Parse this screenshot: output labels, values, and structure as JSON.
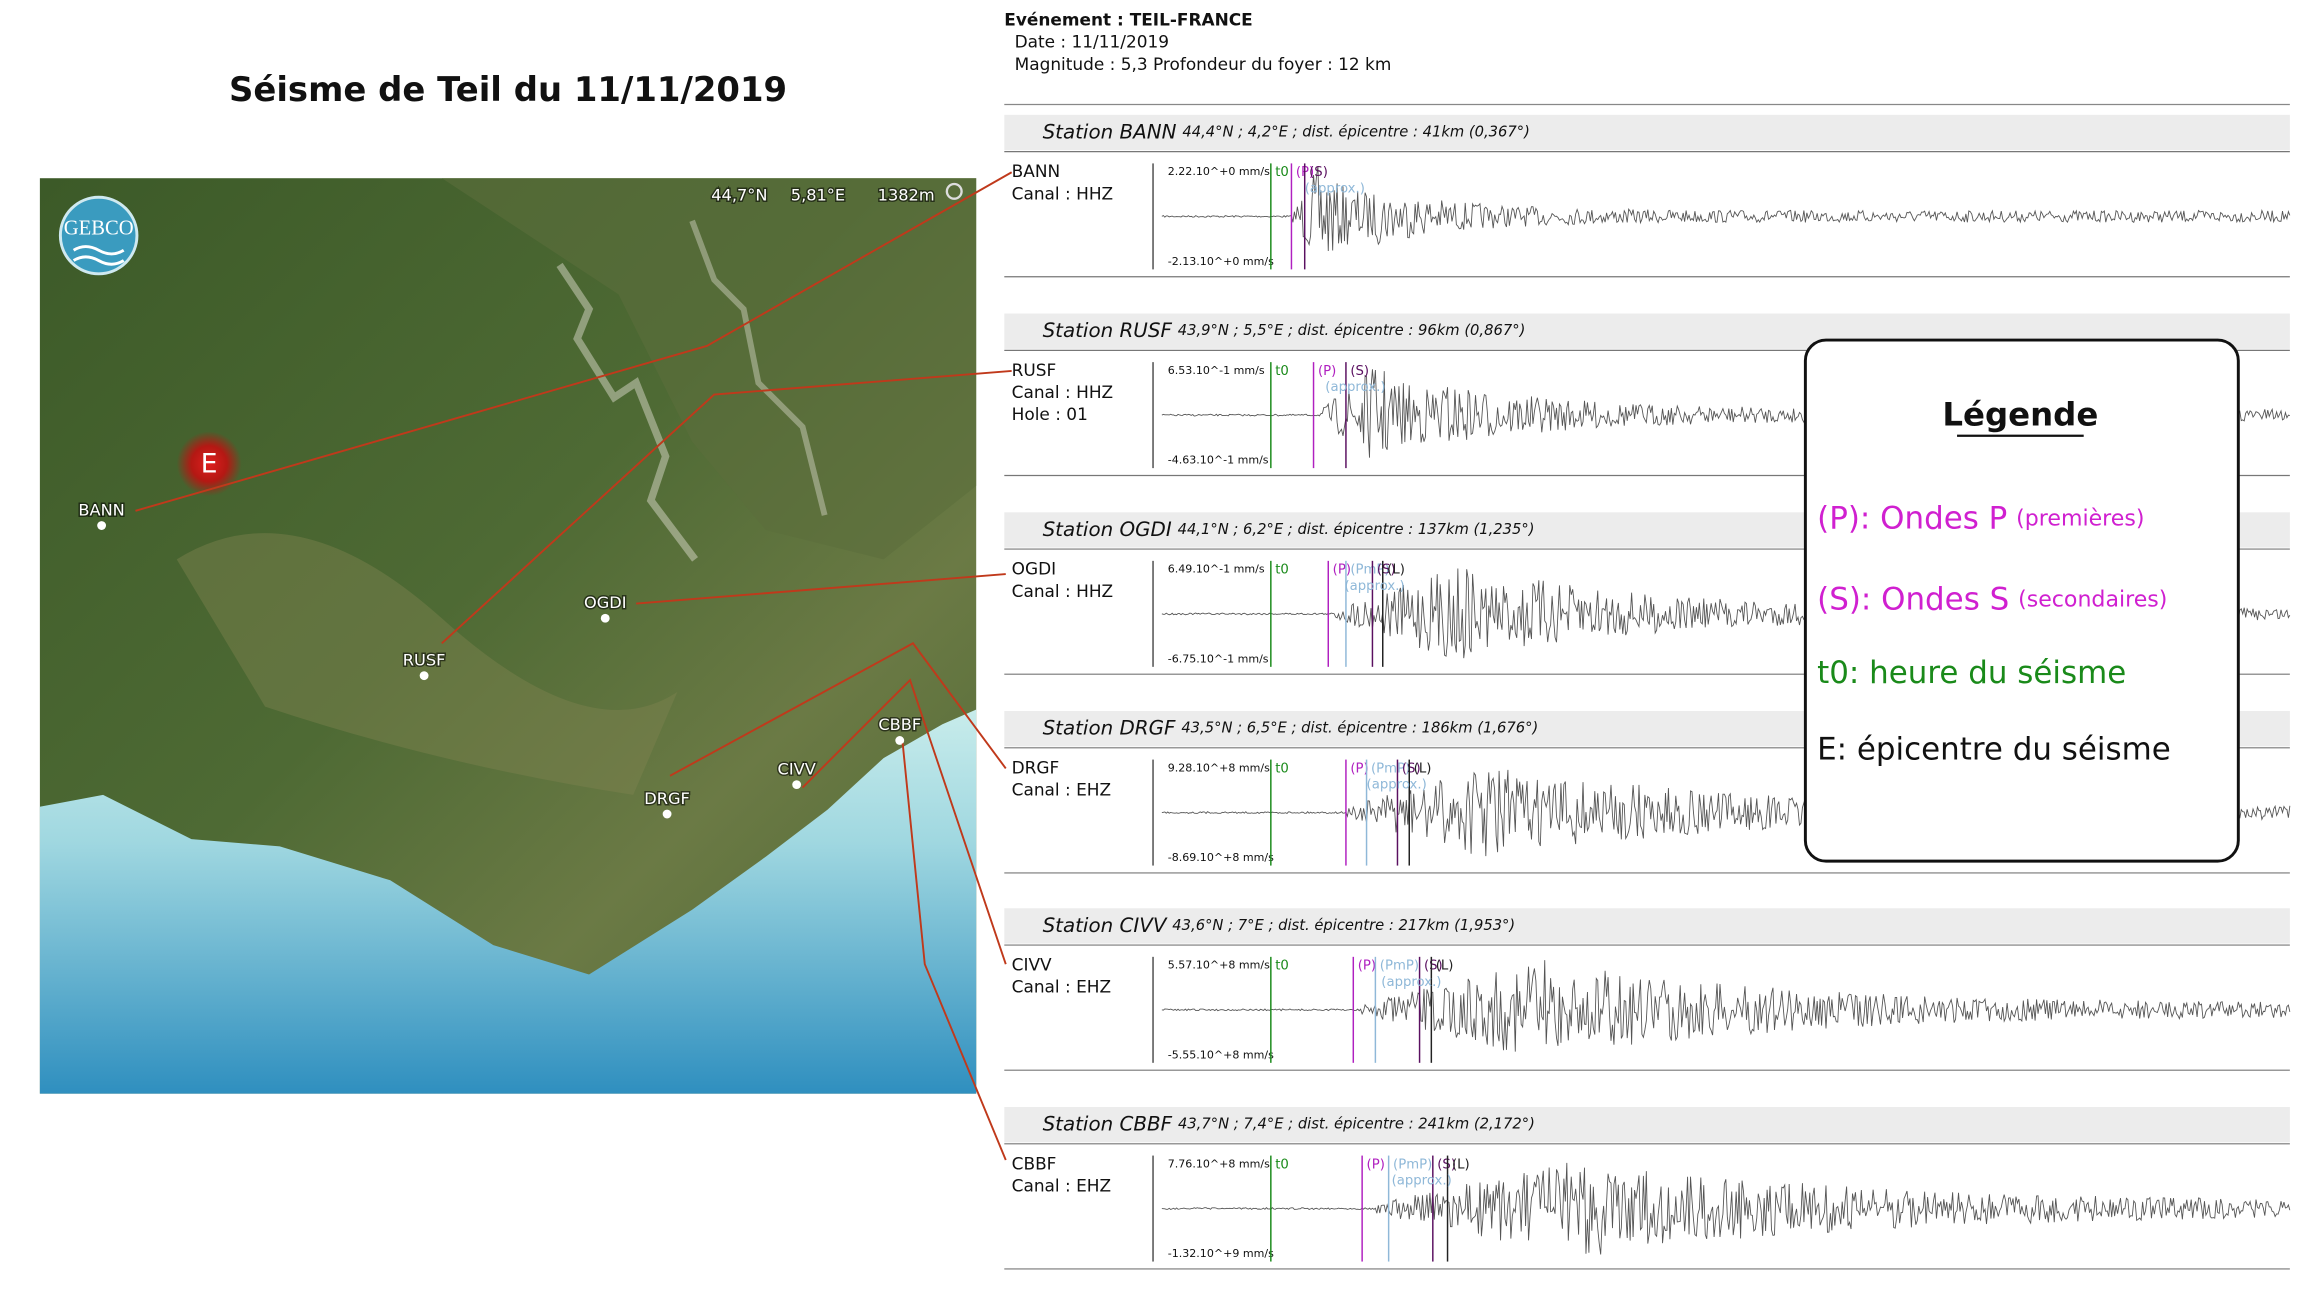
{
  "title": "Séisme de Teil du 11/11/2019",
  "map": {
    "logo": "GEBCO",
    "coords": [
      "44,7°N",
      "5,81°E",
      "1382m"
    ],
    "epicenter": "E",
    "stations": [
      "BANN",
      "OGDI",
      "RUSF",
      "DRGF",
      "CIVV",
      "CBBF"
    ]
  },
  "event": {
    "name": "Evénement : TEIL-FRANCE",
    "date": "Date : 11/11/2019",
    "details": "Magnitude : 5,3  Profondeur du foyer : 12 km"
  },
  "stations": [
    {
      "heading": "Station BANN",
      "details": "44,4°N ; 4,2°E ; dist. épicentre : 41km (0,367°)",
      "info": [
        "BANN",
        "Canal : HHZ"
      ],
      "max": "2.22.10^+0 mm/s",
      "min": "-2.13.10^+0 mm/s",
      "phases": [
        {
          "label": "t0",
          "color": "#1a8a1a"
        },
        {
          "label": "(P)",
          "color": "#b020c0"
        },
        {
          "label": "(S)",
          "color": "#5a1060"
        },
        {
          "label": "(approx.)",
          "color": "#8fb8d8"
        }
      ]
    },
    {
      "heading": "Station RUSF",
      "details": "43,9°N ; 5,5°E ; dist. épicentre : 96km (0,867°)",
      "info": [
        "RUSF",
        "Canal : HHZ",
        "Hole : 01"
      ],
      "max": "6.53.10^-1 mm/s",
      "min": "-4.63.10^-1 mm/s",
      "phases": [
        {
          "label": "t0",
          "color": "#1a8a1a"
        },
        {
          "label": "(P)",
          "color": "#b020c0"
        },
        {
          "label": "(S)",
          "color": "#5a1060"
        },
        {
          "label": "(approx.)",
          "color": "#8fb8d8"
        }
      ]
    },
    {
      "heading": "Station OGDI",
      "details": "44,1°N ; 6,2°E ; dist. épicentre : 137km (1,235°)",
      "info": [
        "OGDI",
        "Canal : HHZ"
      ],
      "max": "6.49.10^-1 mm/s",
      "min": "-6.75.10^-1 mm/s",
      "phases": [
        {
          "label": "t0",
          "color": "#1a8a1a"
        },
        {
          "label": "(P)",
          "color": "#b020c0"
        },
        {
          "label": "(PmP)",
          "color": "#8fb8d8"
        },
        {
          "label": "(S)",
          "color": "#5a1060"
        },
        {
          "label": "(L)",
          "color": "#222222"
        },
        {
          "label": "(approx.)",
          "color": "#8fb8d8"
        }
      ]
    },
    {
      "heading": "Station DRGF",
      "details": "43,5°N ; 6,5°E ; dist. épicentre : 186km (1,676°)",
      "info": [
        "DRGF",
        "Canal : EHZ"
      ],
      "max": "9.28.10^+8 mm/s",
      "min": "-8.69.10^+8 mm/s",
      "phases": [
        {
          "label": "t0",
          "color": "#1a8a1a"
        },
        {
          "label": "(P)",
          "color": "#b020c0"
        },
        {
          "label": "(PmP)",
          "color": "#8fb8d8"
        },
        {
          "label": "(S)",
          "color": "#5a1060"
        },
        {
          "label": "(L)",
          "color": "#222222"
        },
        {
          "label": "(approx.)",
          "color": "#8fb8d8"
        }
      ]
    },
    {
      "heading": "Station CIVV",
      "details": "43,6°N ; 7°E ; dist. épicentre : 217km (1,953°)",
      "info": [
        "CIVV",
        "Canal : EHZ"
      ],
      "max": "5.57.10^+8 mm/s",
      "min": "-5.55.10^+8 mm/s",
      "phases": [
        {
          "label": "t0",
          "color": "#1a8a1a"
        },
        {
          "label": "(P)",
          "color": "#b020c0"
        },
        {
          "label": "(PmP)",
          "color": "#8fb8d8"
        },
        {
          "label": "(S)",
          "color": "#5a1060"
        },
        {
          "label": "(L)",
          "color": "#222222"
        },
        {
          "label": "(approx.)",
          "color": "#8fb8d8"
        }
      ]
    },
    {
      "heading": "Station CBBF",
      "details": "43,7°N ; 7,4°E ; dist. épicentre : 241km (2,172°)",
      "info": [
        "CBBF",
        "Canal : EHZ"
      ],
      "max": "7.76.10^+8 mm/s",
      "min": "-1.32.10^+9 mm/s",
      "phases": [
        {
          "label": "t0",
          "color": "#1a8a1a"
        },
        {
          "label": "(P)",
          "color": "#b020c0"
        },
        {
          "label": "(PmP)",
          "color": "#8fb8d8"
        },
        {
          "label": "(S)",
          "color": "#5a1060"
        },
        {
          "label": "(L)",
          "color": "#222222"
        },
        {
          "label": "(approx.)",
          "color": "#8fb8d8"
        }
      ]
    }
  ],
  "legend": {
    "title": "Légende",
    "items": [
      {
        "main": "(P): Ondes P",
        "note": "(premières)",
        "color": "#d020d0"
      },
      {
        "main": "(S): Ondes S",
        "note": "(secondaires)",
        "color": "#d020d0"
      },
      {
        "main": "t0: heure du séisme",
        "color": "#1a8a1a"
      },
      {
        "main": "E: épicentre du séisme",
        "color": "#111111"
      }
    ]
  }
}
